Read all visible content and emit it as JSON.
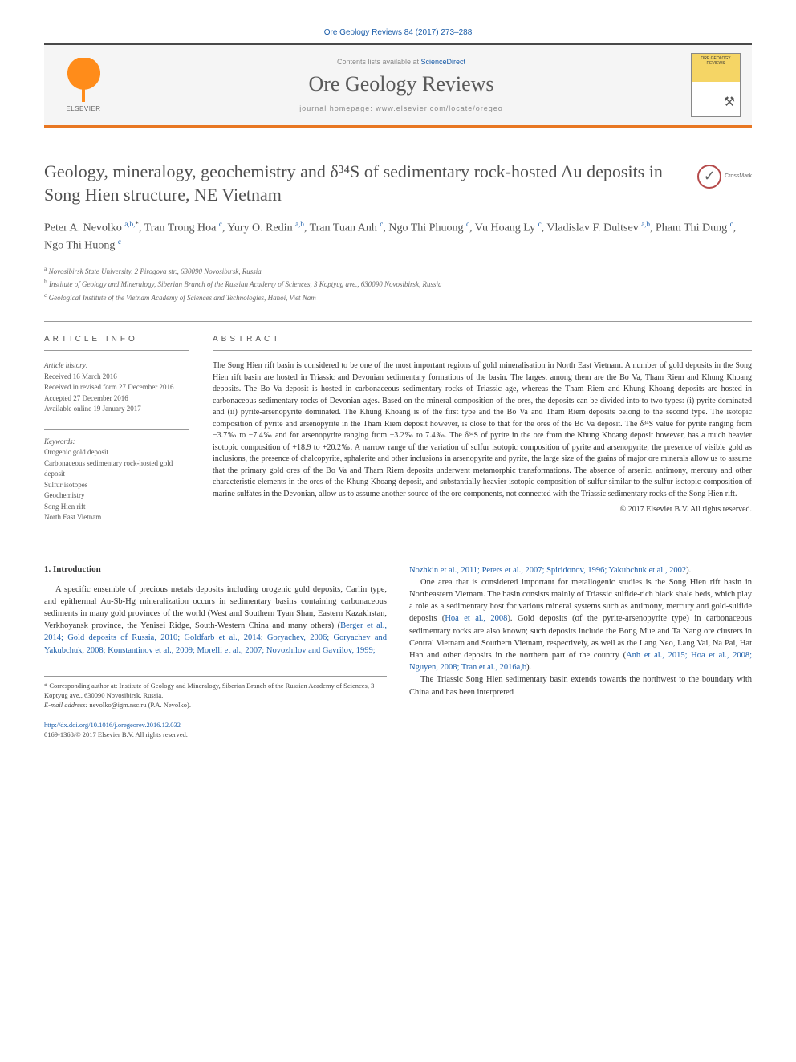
{
  "journal_ref": "Ore Geology Reviews 84 (2017) 273–288",
  "header": {
    "contents_label": "Contents lists available at ",
    "contents_link": "ScienceDirect",
    "journal_name": "Ore Geology Reviews",
    "homepage_label": "journal homepage: www.elsevier.com/locate/oregeo",
    "elsevier_label": "ELSEVIER",
    "cover_text": "ORE GEOLOGY REVIEWS"
  },
  "crossmark": "CrossMark",
  "title": "Geology, mineralogy, geochemistry and δ³⁴S of sedimentary rock-hosted Au deposits in Song Hien structure, NE Vietnam",
  "authors_html": "Peter A. Nevolko <sup>a,b,</sup><sup class='star'>*</sup>, Tran Trong Hoa <sup>c</sup>, Yury O. Redin <sup>a,b</sup>, Tran Tuan Anh <sup>c</sup>, Ngo Thi Phuong <sup>c</sup>, Vu Hoang Ly <sup>c</sup>, Vladislav F. Dultsev <sup>a,b</sup>, Pham Thi Dung <sup>c</sup>, Ngo Thi Huong <sup>c</sup>",
  "affiliations": {
    "a": "Novosibirsk State University, 2 Pirogova str., 630090 Novosibirsk, Russia",
    "b": "Institute of Geology and Mineralogy, Siberian Branch of the Russian Academy of Sciences, 3 Koptyug ave., 630090 Novosibirsk, Russia",
    "c": "Geological Institute of the Vietnam Academy of Sciences and Technologies, Hanoi, Viet Nam"
  },
  "info_label": "ARTICLE INFO",
  "abstract_label": "ABSTRACT",
  "history": {
    "label": "Article history:",
    "received": "Received 16 March 2016",
    "revised": "Received in revised form 27 December 2016",
    "accepted": "Accepted 27 December 2016",
    "online": "Available online 19 January 2017"
  },
  "keywords": {
    "label": "Keywords:",
    "items": [
      "Orogenic gold deposit",
      "Carbonaceous sedimentary rock-hosted gold deposit",
      "Sulfur isotopes",
      "Geochemistry",
      "Song Hien rift",
      "North East Vietnam"
    ]
  },
  "abstract": "The Song Hien rift basin is considered to be one of the most important regions of gold mineralisation in North East Vietnam. A number of gold deposits in the Song Hien rift basin are hosted in Triassic and Devonian sedimentary formations of the basin. The largest among them are the Bo Va, Tham Riem and Khung Khoang deposits. The Bo Va deposit is hosted in carbonaceous sedimentary rocks of Triassic age, whereas the Tham Riem and Khung Khoang deposits are hosted in carbonaceous sedimentary rocks of Devonian ages. Based on the mineral composition of the ores, the deposits can be divided into to two types: (i) pyrite dominated and (ii) pyrite-arsenopyrite dominated. The Khung Khoang is of the first type and the Bo Va and Tham Riem deposits belong to the second type. The isotopic composition of pyrite and arsenopyrite in the Tham Riem deposit however, is close to that for the ores of the Bo Va deposit. The δ³⁴S value for pyrite ranging from −3.7‰ to −7.4‰ and for arsenopyrite ranging from −3.2‰ to 7.4‰. The δ³⁴S of pyrite in the ore from the Khung Khoang deposit however, has a much heavier isotopic composition of +18.9 to +20.2‰. A narrow range of the variation of sulfur isotopic composition of pyrite and arsenopyrite, the presence of visible gold as inclusions, the presence of chalcopyrite, sphalerite and other inclusions in arsenopyrite and pyrite, the large size of the grains of major ore minerals allow us to assume that the primary gold ores of the Bo Va and Tham Riem deposits underwent metamorphic transformations. The absence of arsenic, antimony, mercury and other characteristic elements in the ores of the Khung Khoang deposit, and substantially heavier isotopic composition of sulfur similar to the sulfur isotopic composition of marine sulfates in the Devonian, allow us to assume another source of the ore components, not connected with the Triassic sedimentary rocks of the Song Hien rift.",
  "copyright": "© 2017 Elsevier B.V. All rights reserved.",
  "intro": {
    "heading": "1. Introduction",
    "para1_pre": "A specific ensemble of precious metals deposits including orogenic gold deposits, Carlin type, and epithermal Au-Sb-Hg mineralization occurs in sedimentary basins containing carbonaceous sediments in many gold provinces of the world (West and Southern Tyan Shan, Eastern Kazakhstan, Verkhoyansk province, the Yenisei Ridge, South-Western China and many others) (",
    "para1_cite": "Berger et al., 2014; Gold deposits of Russia, 2010; Goldfarb et al., 2014; Goryachev, 2006; Goryachev and Yakubchuk, 2008; Konstantinov et al., 2009; Morelli et al., 2007; Novozhilov and Gavrilov, 1999;",
    "col2_cite": "Nozhkin et al., 2011; Peters et al., 2007; Spiridonov, 1996; Yakubchuk et al., 2002",
    "col2_cite_post": ").",
    "col2_p2_pre": "One area that is considered important for metallogenic studies is the Song Hien rift basin in Northeastern Vietnam. The basin consists mainly of Triassic sulfide-rich black shale beds, which play a role as a sedimentary host for various mineral systems such as antimony, mercury and gold-sulfide deposits (",
    "col2_p2_cite": "Hoa et al., 2008",
    "col2_p2_mid": "). Gold deposits (of the pyrite-arsenopyrite type) in carbonaceous sedimentary rocks are also known; such deposits include the Bong Mue and Ta Nang ore clusters in Central Vietnam and Southern Vietnam, respectively, as well as the Lang Neo, Lang Vai, Na Pai, Hat Han and other deposits in the northern part of the country (",
    "col2_p2_cite2": "Anh et al., 2015; Hoa et al., 2008; Nguyen, 2008; Tran et al., 2016a,b",
    "col2_p2_post": ").",
    "col2_p3": "The Triassic Song Hien sedimentary basin extends towards the northwest to the boundary with China and has been interpreted"
  },
  "footnote": {
    "corr": "* Corresponding author at: Institute of Geology and Mineralogy, Siberian Branch of the Russian Academy of Sciences, 3 Koptyug ave., 630090 Novosibirsk, Russia.",
    "email_label": "E-mail address: ",
    "email": "nevolko@igm.nsc.ru",
    "email_post": " (P.A. Nevolko)."
  },
  "doi": {
    "url": "http://dx.doi.org/10.1016/j.oregeorev.2016.12.032",
    "issn": "0169-1368/© 2017 Elsevier B.V. All rights reserved."
  },
  "colors": {
    "orange": "#e87722",
    "link": "#1a5ca8",
    "text": "#333333",
    "muted": "#666666",
    "rule": "#999999"
  }
}
